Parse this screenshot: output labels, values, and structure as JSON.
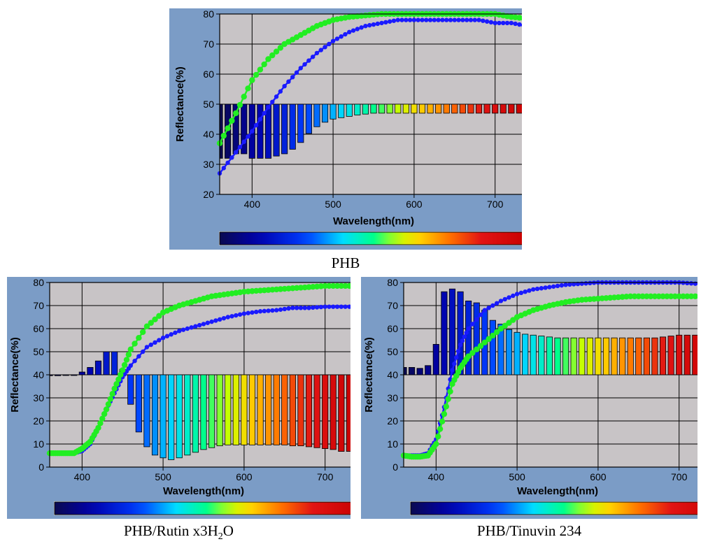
{
  "colors": {
    "panel_bg": "#7b9cc6",
    "plot_bg": "#c8c4c6",
    "grid": "#000000",
    "series_1": "#1a1aff",
    "series_2": "#22ee22"
  },
  "captions": {
    "top": "PHB",
    "bottom_left_main": "PHB/Rutin x3H",
    "bottom_left_sub": "2",
    "bottom_left_tail": "O",
    "bottom_right": "PHB/Tinuvin 234"
  },
  "chart_data": [
    {
      "type": "line",
      "title": "PHB",
      "xlabel": "Wavelength(nm)",
      "ylabel": "Reflectance(%)",
      "xlim": [
        360,
        740
      ],
      "ylim": [
        20,
        80
      ],
      "y2lim": [
        -20,
        20
      ],
      "xticks": [
        400,
        500,
        600,
        700
      ],
      "yticks": [
        20,
        30,
        40,
        50,
        60,
        70,
        80
      ],
      "y2ticks": [
        -20,
        -10,
        0,
        10,
        20
      ],
      "grid": true,
      "spectrum_colorbar": true,
      "series": [
        {
          "axis": "left",
          "color": "#1a1aff",
          "x": [
            360,
            380,
            400,
            420,
            440,
            460,
            480,
            500,
            520,
            540,
            560,
            580,
            600,
            620,
            640,
            660,
            680,
            700,
            720,
            740
          ],
          "values": [
            27,
            34,
            41,
            49,
            56,
            62,
            67,
            71,
            74,
            76,
            77,
            78,
            78,
            78,
            78,
            78,
            78,
            77,
            77,
            76
          ]
        },
        {
          "axis": "left",
          "color": "#22ee22",
          "x": [
            360,
            380,
            400,
            420,
            440,
            460,
            480,
            500,
            520,
            540,
            560,
            580,
            600,
            620,
            640,
            660,
            680,
            700,
            720,
            740
          ],
          "values": [
            37,
            47,
            58,
            65,
            70,
            73,
            76,
            78,
            79,
            79.5,
            80,
            80,
            80,
            80,
            80,
            80,
            80,
            80,
            79,
            78.5
          ]
        },
        {
          "type": "bar",
          "axis": "right",
          "x": [
            360,
            370,
            380,
            390,
            400,
            410,
            420,
            430,
            440,
            450,
            460,
            470,
            480,
            490,
            500,
            510,
            520,
            530,
            540,
            550,
            560,
            570,
            580,
            590,
            600,
            610,
            620,
            630,
            640,
            650,
            660,
            670,
            680,
            690,
            700,
            710,
            720,
            730,
            740
          ],
          "values": [
            -12,
            -12,
            -11,
            -11,
            -12,
            -12,
            -12,
            -11.5,
            -11,
            -10,
            -8.5,
            -6.5,
            -5,
            -4,
            -3.3,
            -3,
            -2.7,
            -2.4,
            -2.2,
            -2,
            -2,
            -2,
            -2,
            -2,
            -2,
            -2,
            -2,
            -2,
            -2,
            -2,
            -2,
            -2,
            -2,
            -2,
            -2,
            -2,
            -2,
            -2,
            -2
          ]
        }
      ]
    },
    {
      "type": "line",
      "title": "PHB/Rutin x3H2O",
      "xlabel": "Wavelength(nm)",
      "ylabel": "Reflectance(%)",
      "xlim": [
        360,
        740
      ],
      "ylim": [
        0,
        80
      ],
      "y2lim": [
        -10,
        10
      ],
      "xticks": [
        400,
        500,
        600,
        700
      ],
      "yticks": [
        0,
        10,
        20,
        30,
        40,
        50,
        60,
        70,
        80
      ],
      "y2ticks": [
        -10,
        0,
        10
      ],
      "grid": true,
      "spectrum_colorbar": true,
      "series": [
        {
          "axis": "left",
          "color": "#1a1aff",
          "x": [
            360,
            370,
            380,
            390,
            400,
            410,
            420,
            430,
            440,
            450,
            460,
            480,
            500,
            520,
            540,
            560,
            580,
            600,
            620,
            640,
            660,
            680,
            700,
            720,
            740
          ],
          "values": [
            6,
            6,
            6,
            6,
            7,
            10,
            17,
            25,
            32,
            39,
            44,
            52,
            56,
            59,
            61,
            63,
            65,
            66.5,
            67.5,
            68,
            69,
            69,
            69.5,
            69.5,
            69.5
          ]
        },
        {
          "axis": "left",
          "color": "#22ee22",
          "x": [
            360,
            370,
            380,
            390,
            400,
            410,
            420,
            430,
            440,
            450,
            460,
            480,
            500,
            520,
            540,
            560,
            580,
            600,
            620,
            640,
            660,
            680,
            700,
            720,
            740
          ],
          "values": [
            6,
            6,
            6,
            6,
            8,
            11,
            17,
            25,
            34,
            42,
            51,
            61,
            67,
            70,
            72,
            74,
            75,
            76,
            76.5,
            77,
            77.5,
            78,
            78.5,
            78.5,
            78.5
          ]
        },
        {
          "type": "bar",
          "axis": "right",
          "x": [
            360,
            370,
            380,
            390,
            400,
            410,
            420,
            430,
            440,
            450,
            460,
            470,
            480,
            490,
            500,
            510,
            520,
            530,
            540,
            550,
            560,
            570,
            580,
            590,
            600,
            610,
            620,
            630,
            640,
            650,
            660,
            670,
            680,
            690,
            700,
            710,
            720,
            730,
            740
          ],
          "values": [
            -0.1,
            -0.1,
            0,
            0,
            0.3,
            0.8,
            1.5,
            2.5,
            2.5,
            0.6,
            -3.2,
            -6.2,
            -7.8,
            -8.7,
            -9,
            -9.2,
            -9,
            -8.7,
            -8.4,
            -8.1,
            -7.9,
            -7.7,
            -7.6,
            -7.6,
            -7.6,
            -7.6,
            -7.6,
            -7.6,
            -7.6,
            -7.6,
            -7.7,
            -7.7,
            -7.8,
            -7.9,
            -8,
            -8.1,
            -8.3,
            -8.3,
            -8.3
          ]
        }
      ]
    },
    {
      "type": "line",
      "title": "PHB/Tinuvin 234",
      "xlabel": "Wavelength(nm)",
      "ylabel": "Reflectance(%)",
      "xlim": [
        360,
        740
      ],
      "ylim": [
        0,
        80
      ],
      "y2lim": [
        -10,
        10
      ],
      "xticks": [
        400,
        500,
        600,
        700
      ],
      "yticks": [
        0,
        10,
        20,
        30,
        40,
        50,
        60,
        70,
        80
      ],
      "y2ticks": [
        -10,
        0,
        10
      ],
      "grid": true,
      "spectrum_colorbar": true,
      "series": [
        {
          "axis": "left",
          "color": "#1a1aff",
          "x": [
            360,
            370,
            380,
            390,
            400,
            410,
            420,
            430,
            440,
            460,
            480,
            500,
            520,
            540,
            560,
            580,
            600,
            620,
            640,
            660,
            680,
            700,
            720,
            740
          ],
          "values": [
            5,
            5,
            5,
            6,
            12,
            26,
            42,
            53,
            60,
            68,
            72,
            75,
            77,
            78,
            79,
            79.5,
            80,
            80,
            80,
            80,
            80,
            80,
            79.5,
            79
          ]
        },
        {
          "axis": "left",
          "color": "#22ee22",
          "x": [
            360,
            370,
            380,
            390,
            400,
            410,
            420,
            430,
            440,
            460,
            480,
            500,
            520,
            540,
            560,
            580,
            600,
            620,
            640,
            660,
            680,
            700,
            720,
            740
          ],
          "values": [
            5,
            4.5,
            4.5,
            5,
            10,
            23,
            36,
            43,
            48,
            54,
            60,
            65,
            68,
            70,
            71.5,
            72.5,
            73,
            73.5,
            74,
            74,
            74,
            74,
            74,
            74
          ]
        },
        {
          "type": "bar",
          "axis": "right",
          "x": [
            360,
            370,
            380,
            390,
            400,
            410,
            420,
            430,
            440,
            450,
            460,
            470,
            480,
            490,
            500,
            510,
            520,
            530,
            540,
            550,
            560,
            570,
            580,
            590,
            600,
            610,
            620,
            630,
            640,
            650,
            660,
            670,
            680,
            690,
            700,
            710,
            720,
            730,
            740
          ],
          "values": [
            0.8,
            0.8,
            0.7,
            1,
            3.3,
            9,
            9.3,
            9,
            8,
            7.8,
            7,
            5.9,
            5.5,
            4.9,
            4.6,
            4.4,
            4.3,
            4.2,
            4.1,
            4,
            4,
            4,
            4,
            4,
            4,
            4,
            4,
            4,
            4,
            4,
            4,
            4,
            4.1,
            4.2,
            4.3,
            4.3,
            4.3,
            4.3,
            4.3
          ]
        }
      ]
    }
  ]
}
